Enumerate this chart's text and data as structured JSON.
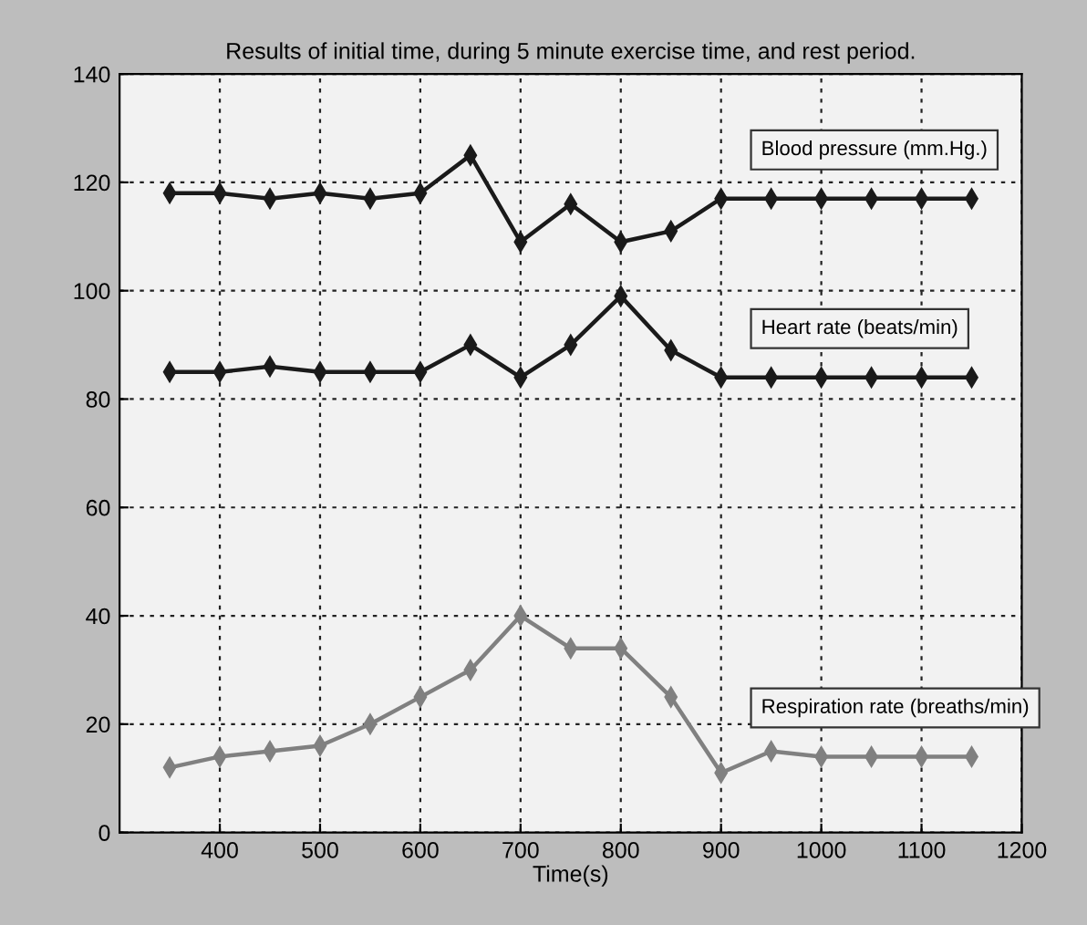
{
  "chart_data": {
    "type": "line",
    "title": "Results of initial time, during 5 minute exercise time, and rest period.",
    "xlabel": "Time(s)",
    "x": [
      350,
      400,
      450,
      500,
      550,
      600,
      650,
      700,
      750,
      800,
      850,
      900,
      950,
      1000,
      1050,
      1100,
      1150
    ],
    "series": [
      {
        "name": "Blood pressure (mm.Hg.)",
        "color": "#1a1a1a",
        "values": [
          118,
          118,
          117,
          118,
          117,
          118,
          125,
          109,
          116,
          109,
          111,
          117,
          117,
          117,
          117,
          117,
          117
        ]
      },
      {
        "name": "Heart rate (beats/min)",
        "color": "#1a1a1a",
        "values": [
          85,
          85,
          86,
          85,
          85,
          85,
          90,
          84,
          90,
          99,
          89,
          84,
          84,
          84,
          84,
          84,
          84
        ]
      },
      {
        "name": "Respiration rate (breaths/min)",
        "color": "#808080",
        "values": [
          12,
          14,
          15,
          16,
          20,
          25,
          30,
          40,
          34,
          34,
          25,
          11,
          15,
          14,
          14,
          14,
          14
        ]
      }
    ],
    "xlim": [
      300,
      1200
    ],
    "xticks": [
      400,
      500,
      600,
      700,
      800,
      900,
      1000,
      1100,
      1200
    ],
    "ylim": [
      0,
      140
    ],
    "yticks": [
      0,
      20,
      40,
      60,
      80,
      100,
      120,
      140
    ],
    "grid": true,
    "marker": "diamond",
    "line_style": "solid",
    "legend": false
  }
}
